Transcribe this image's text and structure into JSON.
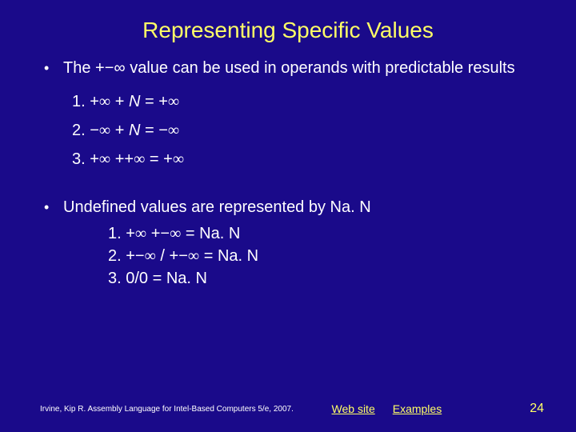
{
  "title": "Representing Specific Values",
  "section1": {
    "text": "The +−∞ value can be used in operands with predictable results",
    "items": [
      "1. +∞ + N = +∞",
      "2. −∞ + N = −∞",
      "3. +∞ ++∞ = +∞"
    ]
  },
  "section2": {
    "text": "Undefined values are represented by Na. N",
    "items": [
      "1. +∞ +−∞ = Na. N",
      "2. +−∞ / +−∞ = Na. N",
      "3. 0/0 = Na. N"
    ]
  },
  "footer": {
    "citation": "Irvine, Kip R. Assembly Language for Intel-Based Computers 5/e, 2007.",
    "link1": "Web site",
    "link2": "Examples",
    "page": "24"
  },
  "colors": {
    "background": "#1a0a8a",
    "title": "#ffff66",
    "body": "#ffffff",
    "link": "#ffff66"
  }
}
